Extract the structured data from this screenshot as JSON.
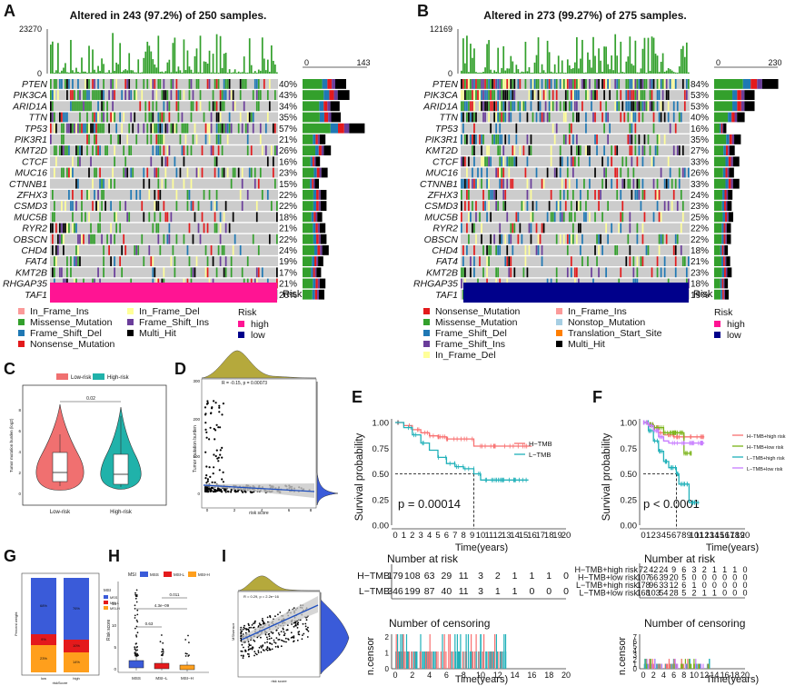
{
  "colors": {
    "missense": "#33a02c",
    "nonsense": "#e31a1c",
    "frame_shift_del": "#1f78b4",
    "frame_shift_ins": "#6a3d9a",
    "in_frame_ins": "#fb9a99",
    "in_frame_del": "#ffff99",
    "multi_hit": "#000000",
    "nonstop": "#a6cee3",
    "tss": "#ff7f00",
    "risk_high": "#ff1493",
    "risk_low": "#00008b",
    "low_risk": "#f07070",
    "high_risk": "#20b2aa",
    "bg_cell": "#cccccc",
    "hist_olive": "#b5a93c",
    "hist_blue": "#3a5bd9",
    "km_h_high": "#f87171",
    "km_h_low": "#7ab317",
    "km_l_high": "#21b1b9",
    "km_l_low": "#c77cff"
  },
  "panels": {
    "A": "A",
    "B": "B",
    "C": "C",
    "D": "D",
    "E": "E",
    "F": "F",
    "G": "G",
    "H": "H",
    "I": "I"
  },
  "panel_a": {
    "title": "Altered in 243 (97.2%) of 250 samples.",
    "tmb_max": "23270",
    "tmb_min": "0",
    "bar_min": "0",
    "bar_max": "143",
    "genes": [
      "PTEN",
      "PIK3CA",
      "ARID1A",
      "TTN",
      "TP53",
      "PIK3R1",
      "KMT2D",
      "CTCF",
      "MUC16",
      "CTNNB1",
      "ZFHX3",
      "CSMD3",
      "MUC5B",
      "RYR2",
      "OBSCN",
      "CHD4",
      "FAT4",
      "KMT2B",
      "RHGAP35",
      "TAF1"
    ],
    "pcts": [
      "40%",
      "43%",
      "34%",
      "35%",
      "57%",
      "21%",
      "26%",
      "16%",
      "23%",
      "15%",
      "22%",
      "22%",
      "18%",
      "21%",
      "22%",
      "24%",
      "19%",
      "17%",
      "21%",
      "20%"
    ],
    "risk_label": "Risk",
    "legend": [
      "In_Frame_Ins",
      "Missense_Mutation",
      "Frame_Shift_Del",
      "Nonsense_Mutation",
      "In_Frame_Del",
      "Frame_Shift_Ins",
      "Multi_Hit"
    ],
    "risk_legend_title": "Risk",
    "risk_levels": [
      "high",
      "low"
    ]
  },
  "panel_b": {
    "title": "Altered in 273 (99.27%) of 275 samples.",
    "tmb_max": "12169",
    "tmb_min": "0",
    "bar_min": "0",
    "bar_max": "230",
    "genes": [
      "PTEN",
      "PIK3CA",
      "ARID1A",
      "TTN",
      "TP53",
      "PIK3R1",
      "KMT2D",
      "CTCF",
      "MUC16",
      "CTNNB1",
      "ZFHX3",
      "CSMD3",
      "MUC5B",
      "RYR2",
      "OBSCN",
      "CHD4",
      "FAT4",
      "KMT2B",
      "RHGAP35",
      "TAF1"
    ],
    "pcts": [
      "84%",
      "53%",
      "53%",
      "40%",
      "16%",
      "35%",
      "27%",
      "33%",
      "26%",
      "33%",
      "24%",
      "23%",
      "25%",
      "22%",
      "22%",
      "18%",
      "21%",
      "23%",
      "18%",
      "19%"
    ],
    "risk_label": "Risk",
    "legend": [
      "Nonsense_Mutation",
      "Missense_Mutation",
      "Frame_Shift_Del",
      "Frame_Shift_Ins",
      "In_Frame_Del",
      "In_Frame_Ins",
      "Nonstop_Mutation",
      "Translation_Start_Site",
      "Multi_Hit"
    ],
    "risk_legend_title": "Risk",
    "risk_levels": [
      "high",
      "low"
    ]
  },
  "panel_c": {
    "legend": [
      "Low-risk",
      "High-risk"
    ],
    "ylabel": "Tumor mutation burden (log2)",
    "pval": "0.02",
    "xticks": [
      "Low-risk",
      "High-risk"
    ],
    "yticks": [
      "0",
      "2",
      "4",
      "6",
      "8"
    ]
  },
  "panel_d": {
    "annotation": "R = -0.15, p = 0.00073",
    "xlabel": "risk score",
    "ylabel": "Tumor mutation burden",
    "yticks": [
      "0",
      "100",
      "200",
      "300"
    ],
    "xticks": [
      "0",
      "2",
      "4",
      "6",
      "8"
    ]
  },
  "panel_e": {
    "ylabel": "Survival probability",
    "xlabel": "Time(years)",
    "pval": "p = 0.00014",
    "legend": [
      "H−TMB",
      "L−TMB"
    ],
    "yticks": [
      "1.00",
      "0.75",
      "0.50",
      "0.25",
      "0.00"
    ],
    "xticks": [
      "0",
      "1",
      "2",
      "3",
      "4",
      "5",
      "6",
      "7",
      "8",
      "9",
      "10",
      "11",
      "12",
      "13",
      "14",
      "15",
      "16",
      "17",
      "18",
      "19",
      "20"
    ],
    "risk_title": "Number at risk",
    "risk_rows": [
      {
        "label": "H−TMB",
        "values": [
          "179",
          "108",
          "63",
          "29",
          "11",
          "3",
          "2",
          "1",
          "1",
          "1",
          "0"
        ]
      },
      {
        "label": "L−TMB",
        "values": [
          "346",
          "199",
          "87",
          "40",
          "11",
          "3",
          "1",
          "1",
          "0",
          "0",
          "0"
        ]
      }
    ],
    "risk_xticks": [
      "0",
      "2",
      "4",
      "6",
      "8",
      "10",
      "12",
      "14",
      "16",
      "18",
      "20"
    ],
    "censor_title": "Number of censoring",
    "censor_ylabel": "n.censor",
    "censor_yticks": [
      "2",
      "1",
      "0"
    ]
  },
  "panel_f": {
    "ylabel": "Survival probability",
    "xlabel": "Time(years)",
    "pval": "p < 0.0001",
    "legend": [
      "H−TMB+high risk",
      "H−TMB+low risk",
      "L−TMB+high risk",
      "L−TMB+low risk"
    ],
    "yticks": [
      "1.00",
      "0.75",
      "0.50",
      "0.25",
      "0.00"
    ],
    "xticks": [
      "0",
      "1",
      "2",
      "3",
      "4",
      "5",
      "6",
      "7",
      "8",
      "9",
      "10",
      "11",
      "12",
      "13",
      "14",
      "15",
      "16",
      "17",
      "18",
      "19",
      "20"
    ],
    "risk_title": "Number at risk",
    "risk_rows": [
      {
        "label": "H−TMB+high risk",
        "values": [
          "72",
          "42",
          "24",
          "9",
          "6",
          "3",
          "2",
          "1",
          "1",
          "1",
          "0"
        ]
      },
      {
        "label": "H−TMB+low risk",
        "values": [
          "107",
          "66",
          "39",
          "20",
          "5",
          "0",
          "0",
          "0",
          "0",
          "0",
          "0"
        ]
      },
      {
        "label": "L−TMB+high risk",
        "values": [
          "178",
          "96",
          "33",
          "12",
          "6",
          "1",
          "0",
          "0",
          "0",
          "0",
          "0"
        ]
      },
      {
        "label": "L−TMB+low risk",
        "values": [
          "168",
          "103",
          "54",
          "28",
          "5",
          "2",
          "1",
          "1",
          "0",
          "0",
          "0"
        ]
      }
    ],
    "risk_xticks": [
      "0",
      "2",
      "4",
      "6",
      "8",
      "10",
      "12",
      "14",
      "16",
      "18",
      "20"
    ],
    "censor_title": "Number of censoring",
    "censor_ylabel": "n.censor",
    "censor_yticks": [
      "7",
      "6",
      "5",
      "4",
      "3",
      "2",
      "1",
      "0"
    ]
  },
  "panel_g": {
    "ylabel": "Percent weight",
    "legend_title": "MSI",
    "legend": [
      "MSS",
      "MSI-L",
      "MSI-H"
    ],
    "xticks": [
      "low",
      "high"
    ],
    "xlabel": "riskScore",
    "bar_labels": [
      "68%",
      "76%",
      "9%",
      "10%",
      "23%",
      "14%"
    ]
  },
  "panel_h": {
    "legend_title": "MSI",
    "legend": [
      "MSS",
      "MSI-L",
      "MSI-H"
    ],
    "ylabel": "Risk score",
    "xticks": [
      "MSS",
      "MSI−L",
      "MSI−H"
    ],
    "pvals": [
      "0.63",
      "4.3e−09",
      "0.011"
    ],
    "yticks": [
      "0",
      "5",
      "10",
      "15"
    ]
  },
  "panel_i": {
    "annotation": "R = 0.29, p = 2.2e−16",
    "xlabel": "risk score",
    "ylabel": "MSIsensor"
  }
}
